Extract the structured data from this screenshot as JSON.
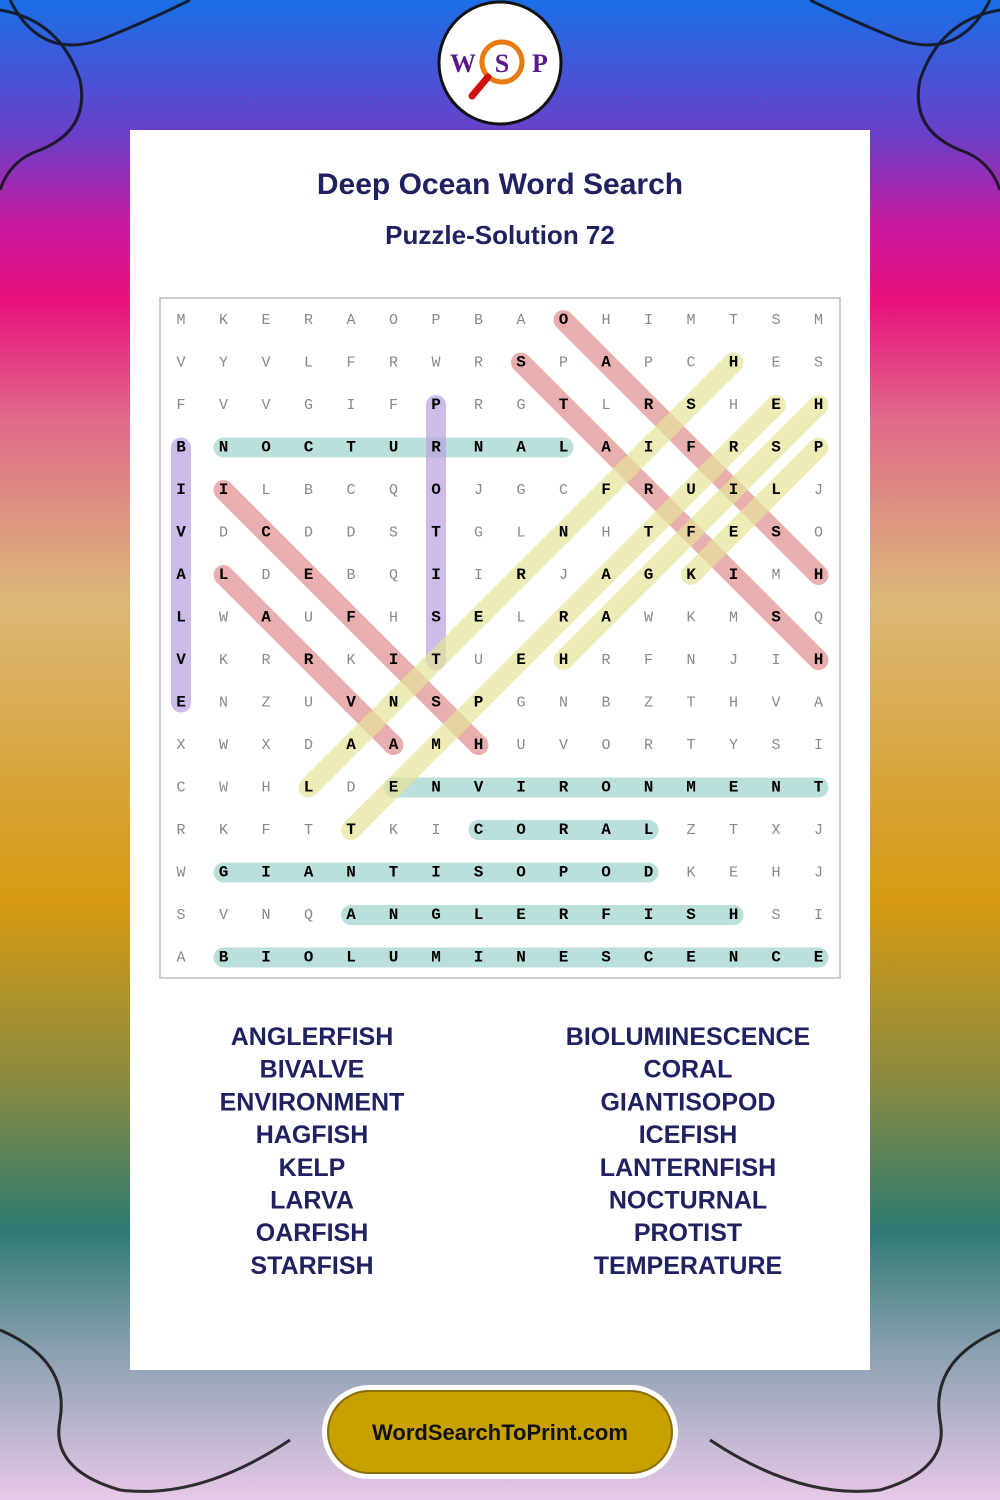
{
  "logo": [
    "W",
    "S",
    "P"
  ],
  "header": {
    "title": "Deep Ocean Word Search",
    "subtitle": "Puzzle-Solution 72"
  },
  "grid": {
    "rows": [
      "MKERAOPBAOHIMTSM",
      "VYVLFRWRSPAPCHES",
      "FVVGIFPRGTLRSHEH",
      "BNOCTURNALAIFRSP",
      "IILBCQOJGCFRUILJ",
      "VDCDDSTGLNHTFESO",
      "ALDEBQIIRJAGKIMH",
      "LWAUFHSELRAWKMSQ",
      "VKRRKITUEHRFNJIH",
      "ENZUVNSPGNBZTHVA",
      "XWXDAAMHUVORTYSI",
      "CWHLDENVIRONMENT",
      "RKFTTKICORALZTXJ",
      "WGIANTISOPODKEHJ",
      "SVNQANGLERFISHSI",
      "ABIOLUMINESCENCE"
    ],
    "highlights": [
      {
        "from": [
          3,
          1
        ],
        "to": [
          3,
          9
        ],
        "color": "#9fd4cc"
      },
      {
        "from": [
          11,
          5
        ],
        "to": [
          11,
          15
        ],
        "color": "#9fd4cc"
      },
      {
        "from": [
          12,
          7
        ],
        "to": [
          12,
          11
        ],
        "color": "#9fd4cc"
      },
      {
        "from": [
          13,
          1
        ],
        "to": [
          13,
          11
        ],
        "color": "#9fd4cc"
      },
      {
        "from": [
          14,
          4
        ],
        "to": [
          14,
          13
        ],
        "color": "#9fd4cc"
      },
      {
        "from": [
          15,
          1
        ],
        "to": [
          15,
          15
        ],
        "color": "#9fd4cc"
      },
      {
        "from": [
          3,
          0
        ],
        "to": [
          9,
          0
        ],
        "color": "#b9a0e0"
      },
      {
        "from": [
          2,
          6
        ],
        "to": [
          8,
          6
        ],
        "color": "#b9a0e0"
      },
      {
        "from": [
          4,
          1
        ],
        "to": [
          10,
          7
        ],
        "color": "#e08c8c"
      },
      {
        "from": [
          6,
          1
        ],
        "to": [
          10,
          5
        ],
        "color": "#e08c8c"
      },
      {
        "from": [
          0,
          9
        ],
        "to": [
          6,
          15
        ],
        "color": "#e08c8c"
      },
      {
        "from": [
          1,
          8
        ],
        "to": [
          8,
          15
        ],
        "color": "#e08c8c"
      },
      {
        "from": [
          8,
          9
        ],
        "to": [
          2,
          15
        ],
        "color": "#e6e49a"
      },
      {
        "from": [
          12,
          4
        ],
        "to": [
          2,
          14
        ],
        "color": "#e6e49a"
      },
      {
        "from": [
          11,
          3
        ],
        "to": [
          1,
          13
        ],
        "color": "#e6e49a"
      },
      {
        "from": [
          6,
          12
        ],
        "to": [
          3,
          15
        ],
        "color": "#e6e49a"
      }
    ]
  },
  "words": [
    [
      "ANGLERFISH",
      "BIVALVE",
      "ENVIRONMENT",
      "HAGFISH",
      "KELP",
      "LARVA",
      "OARFISH",
      "STARFISH"
    ],
    [
      "BIOLUMINESCENCE",
      "CORAL",
      "GIANTISOPOD",
      "ICEFISH",
      "LANTERNFISH",
      "NOCTURNAL",
      "PROTIST",
      "TEMPERATURE"
    ]
  ],
  "footer": "WordSearchToPrint.com"
}
